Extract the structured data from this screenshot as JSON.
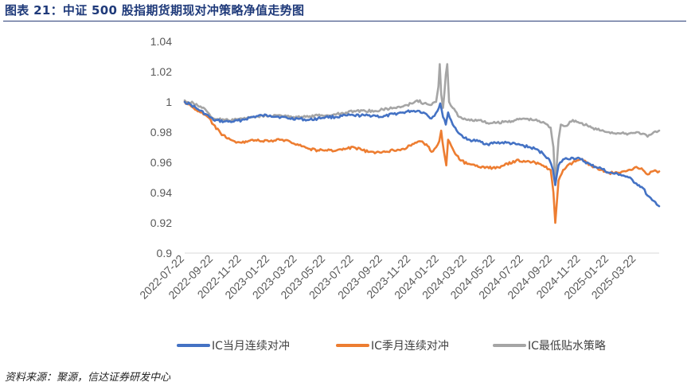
{
  "figure_title": "图表 21：中证 500 股指期货期现对冲策略净值走势图",
  "source_note": "资料来源：聚源，信达证券研发中心",
  "chart_data": {
    "type": "line",
    "title": "",
    "xlabel": "",
    "ylabel": "",
    "ylim": [
      0.9,
      1.04
    ],
    "yticks": [
      0.9,
      0.92,
      0.94,
      0.96,
      0.98,
      1,
      1.02,
      1.04
    ],
    "ytick_labels": [
      "0.9",
      "0.92",
      "0.94",
      "0.96",
      "0.98",
      "1",
      "1.02",
      "1.04"
    ],
    "x_range": [
      "2022-07-22",
      "2025-05-10"
    ],
    "xticks": [
      "2022-07-22",
      "2022-09-22",
      "2022-11-22",
      "2023-01-22",
      "2023-03-22",
      "2023-05-22",
      "2023-07-22",
      "2023-09-22",
      "2023-11-22",
      "2024-01-22",
      "2024-03-22",
      "2024-05-22",
      "2024-07-22",
      "2024-09-22",
      "2024-11-22",
      "2025-01-22",
      "2025-03-22"
    ],
    "grid": false,
    "legend_position": "bottom",
    "series": [
      {
        "name": "IC当月连续对冲",
        "color": "#4472C4",
        "points": [
          [
            "2022-07-22",
            1.0
          ],
          [
            "2022-08-05",
            0.998
          ],
          [
            "2022-08-20",
            0.995
          ],
          [
            "2022-09-05",
            0.992
          ],
          [
            "2022-09-22",
            0.988
          ],
          [
            "2022-10-15",
            0.987
          ],
          [
            "2022-11-05",
            0.987
          ],
          [
            "2022-11-22",
            0.988
          ],
          [
            "2022-12-15",
            0.99
          ],
          [
            "2023-01-05",
            0.991
          ],
          [
            "2023-01-22",
            0.991
          ],
          [
            "2023-02-15",
            0.99
          ],
          [
            "2023-03-05",
            0.989
          ],
          [
            "2023-03-22",
            0.989
          ],
          [
            "2023-04-15",
            0.988
          ],
          [
            "2023-05-05",
            0.989
          ],
          [
            "2023-05-22",
            0.99
          ],
          [
            "2023-06-15",
            0.99
          ],
          [
            "2023-07-05",
            0.991
          ],
          [
            "2023-07-22",
            0.991
          ],
          [
            "2023-08-15",
            0.991
          ],
          [
            "2023-09-05",
            0.991
          ],
          [
            "2023-09-22",
            0.99
          ],
          [
            "2023-10-15",
            0.992
          ],
          [
            "2023-11-05",
            0.993
          ],
          [
            "2023-11-22",
            0.994
          ],
          [
            "2023-12-10",
            0.994
          ],
          [
            "2023-12-25",
            0.992
          ],
          [
            "2024-01-05",
            0.989
          ],
          [
            "2024-01-18",
            0.994
          ],
          [
            "2024-01-24",
            0.999
          ],
          [
            "2024-01-30",
            0.99
          ],
          [
            "2024-02-05",
            0.985
          ],
          [
            "2024-02-10",
            0.993
          ],
          [
            "2024-02-20",
            0.985
          ],
          [
            "2024-03-05",
            0.979
          ],
          [
            "2024-03-22",
            0.975
          ],
          [
            "2024-04-15",
            0.974
          ],
          [
            "2024-05-05",
            0.972
          ],
          [
            "2024-05-22",
            0.973
          ],
          [
            "2024-06-15",
            0.973
          ],
          [
            "2024-07-05",
            0.972
          ],
          [
            "2024-07-22",
            0.971
          ],
          [
            "2024-08-15",
            0.969
          ],
          [
            "2024-09-01",
            0.966
          ],
          [
            "2024-09-15",
            0.962
          ],
          [
            "2024-09-23",
            0.955
          ],
          [
            "2024-09-28",
            0.945
          ],
          [
            "2024-10-05",
            0.958
          ],
          [
            "2024-10-15",
            0.962
          ],
          [
            "2024-11-05",
            0.963
          ],
          [
            "2024-11-22",
            0.962
          ],
          [
            "2024-12-15",
            0.958
          ],
          [
            "2025-01-05",
            0.956
          ],
          [
            "2025-01-22",
            0.953
          ],
          [
            "2025-02-15",
            0.952
          ],
          [
            "2025-03-05",
            0.95
          ],
          [
            "2025-03-22",
            0.946
          ],
          [
            "2025-04-05",
            0.943
          ],
          [
            "2025-04-15",
            0.938
          ],
          [
            "2025-04-25",
            0.935
          ],
          [
            "2025-05-05",
            0.932
          ],
          [
            "2025-05-10",
            0.931
          ]
        ]
      },
      {
        "name": "IC季月连续对冲",
        "color": "#ED7D31",
        "points": [
          [
            "2022-07-22",
            1.0
          ],
          [
            "2022-08-05",
            0.997
          ],
          [
            "2022-08-25",
            0.993
          ],
          [
            "2022-09-10",
            0.99
          ],
          [
            "2022-09-22",
            0.985
          ],
          [
            "2022-10-10",
            0.978
          ],
          [
            "2022-10-25",
            0.976
          ],
          [
            "2022-11-10",
            0.973
          ],
          [
            "2022-11-22",
            0.973
          ],
          [
            "2022-12-15",
            0.975
          ],
          [
            "2023-01-05",
            0.974
          ],
          [
            "2023-01-22",
            0.974
          ],
          [
            "2023-02-15",
            0.975
          ],
          [
            "2023-03-05",
            0.974
          ],
          [
            "2023-03-22",
            0.972
          ],
          [
            "2023-04-15",
            0.969
          ],
          [
            "2023-05-05",
            0.968
          ],
          [
            "2023-05-22",
            0.968
          ],
          [
            "2023-06-15",
            0.968
          ],
          [
            "2023-07-05",
            0.969
          ],
          [
            "2023-07-22",
            0.97
          ],
          [
            "2023-08-10",
            0.968
          ],
          [
            "2023-09-05",
            0.966
          ],
          [
            "2023-09-22",
            0.967
          ],
          [
            "2023-10-15",
            0.968
          ],
          [
            "2023-11-05",
            0.969
          ],
          [
            "2023-11-22",
            0.971
          ],
          [
            "2023-12-10",
            0.974
          ],
          [
            "2023-12-25",
            0.972
          ],
          [
            "2024-01-05",
            0.967
          ],
          [
            "2024-01-15",
            0.97
          ],
          [
            "2024-01-22",
            0.974
          ],
          [
            "2024-01-26",
            0.981
          ],
          [
            "2024-02-01",
            0.967
          ],
          [
            "2024-02-06",
            0.958
          ],
          [
            "2024-02-10",
            0.975
          ],
          [
            "2024-02-20",
            0.969
          ],
          [
            "2024-03-05",
            0.962
          ],
          [
            "2024-03-22",
            0.959
          ],
          [
            "2024-04-15",
            0.957
          ],
          [
            "2024-05-05",
            0.957
          ],
          [
            "2024-05-22",
            0.956
          ],
          [
            "2024-06-10",
            0.958
          ],
          [
            "2024-07-05",
            0.961
          ],
          [
            "2024-07-22",
            0.961
          ],
          [
            "2024-08-15",
            0.96
          ],
          [
            "2024-09-05",
            0.957
          ],
          [
            "2024-09-18",
            0.955
          ],
          [
            "2024-09-24",
            0.94
          ],
          [
            "2024-09-28",
            0.92
          ],
          [
            "2024-10-05",
            0.948
          ],
          [
            "2024-10-15",
            0.955
          ],
          [
            "2024-11-05",
            0.96
          ],
          [
            "2024-11-22",
            0.962
          ],
          [
            "2024-12-15",
            0.958
          ],
          [
            "2025-01-05",
            0.955
          ],
          [
            "2025-01-22",
            0.953
          ],
          [
            "2025-02-15",
            0.953
          ],
          [
            "2025-03-05",
            0.955
          ],
          [
            "2025-03-22",
            0.957
          ],
          [
            "2025-04-05",
            0.955
          ],
          [
            "2025-04-15",
            0.952
          ],
          [
            "2025-04-25",
            0.954
          ],
          [
            "2025-05-10",
            0.954
          ]
        ]
      },
      {
        "name": "IC最低贴水策略",
        "color": "#A5A5A5",
        "points": [
          [
            "2022-07-22",
            1.001
          ],
          [
            "2022-08-10",
            0.999
          ],
          [
            "2022-08-25",
            0.997
          ],
          [
            "2022-09-10",
            0.993
          ],
          [
            "2022-09-22",
            0.989
          ],
          [
            "2022-10-15",
            0.988
          ],
          [
            "2022-11-05",
            0.988
          ],
          [
            "2022-11-22",
            0.989
          ],
          [
            "2022-12-15",
            0.99
          ],
          [
            "2023-01-05",
            0.991
          ],
          [
            "2023-01-22",
            0.991
          ],
          [
            "2023-02-15",
            0.991
          ],
          [
            "2023-03-05",
            0.99
          ],
          [
            "2023-03-22",
            0.99
          ],
          [
            "2023-04-15",
            0.99
          ],
          [
            "2023-05-05",
            0.991
          ],
          [
            "2023-05-22",
            0.991
          ],
          [
            "2023-06-15",
            0.992
          ],
          [
            "2023-07-05",
            0.993
          ],
          [
            "2023-07-22",
            0.994
          ],
          [
            "2023-08-15",
            0.994
          ],
          [
            "2023-09-05",
            0.994
          ],
          [
            "2023-09-22",
            0.995
          ],
          [
            "2023-10-15",
            0.996
          ],
          [
            "2023-11-05",
            0.997
          ],
          [
            "2023-11-22",
            0.999
          ],
          [
            "2023-12-05",
            1.001
          ],
          [
            "2023-12-20",
            0.999
          ],
          [
            "2024-01-05",
            0.998
          ],
          [
            "2024-01-15",
            1.0
          ],
          [
            "2024-01-20",
            1.01
          ],
          [
            "2024-01-23",
            1.025
          ],
          [
            "2024-01-26",
            1.005
          ],
          [
            "2024-01-30",
            0.996
          ],
          [
            "2024-02-05",
            1.018
          ],
          [
            "2024-02-08",
            1.025
          ],
          [
            "2024-02-12",
            1.0
          ],
          [
            "2024-02-20",
            0.996
          ],
          [
            "2024-03-05",
            0.99
          ],
          [
            "2024-03-22",
            0.988
          ],
          [
            "2024-04-15",
            0.988
          ],
          [
            "2024-05-05",
            0.986
          ],
          [
            "2024-05-22",
            0.986
          ],
          [
            "2024-06-15",
            0.987
          ],
          [
            "2024-07-05",
            0.988
          ],
          [
            "2024-07-22",
            0.989
          ],
          [
            "2024-08-15",
            0.988
          ],
          [
            "2024-09-05",
            0.986
          ],
          [
            "2024-09-18",
            0.983
          ],
          [
            "2024-09-24",
            0.97
          ],
          [
            "2024-09-28",
            0.945
          ],
          [
            "2024-10-05",
            0.975
          ],
          [
            "2024-10-10",
            0.985
          ],
          [
            "2024-10-20",
            0.984
          ],
          [
            "2024-11-05",
            0.988
          ],
          [
            "2024-11-22",
            0.986
          ],
          [
            "2024-12-15",
            0.983
          ],
          [
            "2025-01-05",
            0.981
          ],
          [
            "2025-01-22",
            0.98
          ],
          [
            "2025-02-15",
            0.979
          ],
          [
            "2025-03-05",
            0.979
          ],
          [
            "2025-03-22",
            0.98
          ],
          [
            "2025-04-05",
            0.979
          ],
          [
            "2025-04-15",
            0.977
          ],
          [
            "2025-04-25",
            0.979
          ],
          [
            "2025-05-05",
            0.98
          ],
          [
            "2025-05-10",
            0.981
          ]
        ]
      }
    ]
  }
}
